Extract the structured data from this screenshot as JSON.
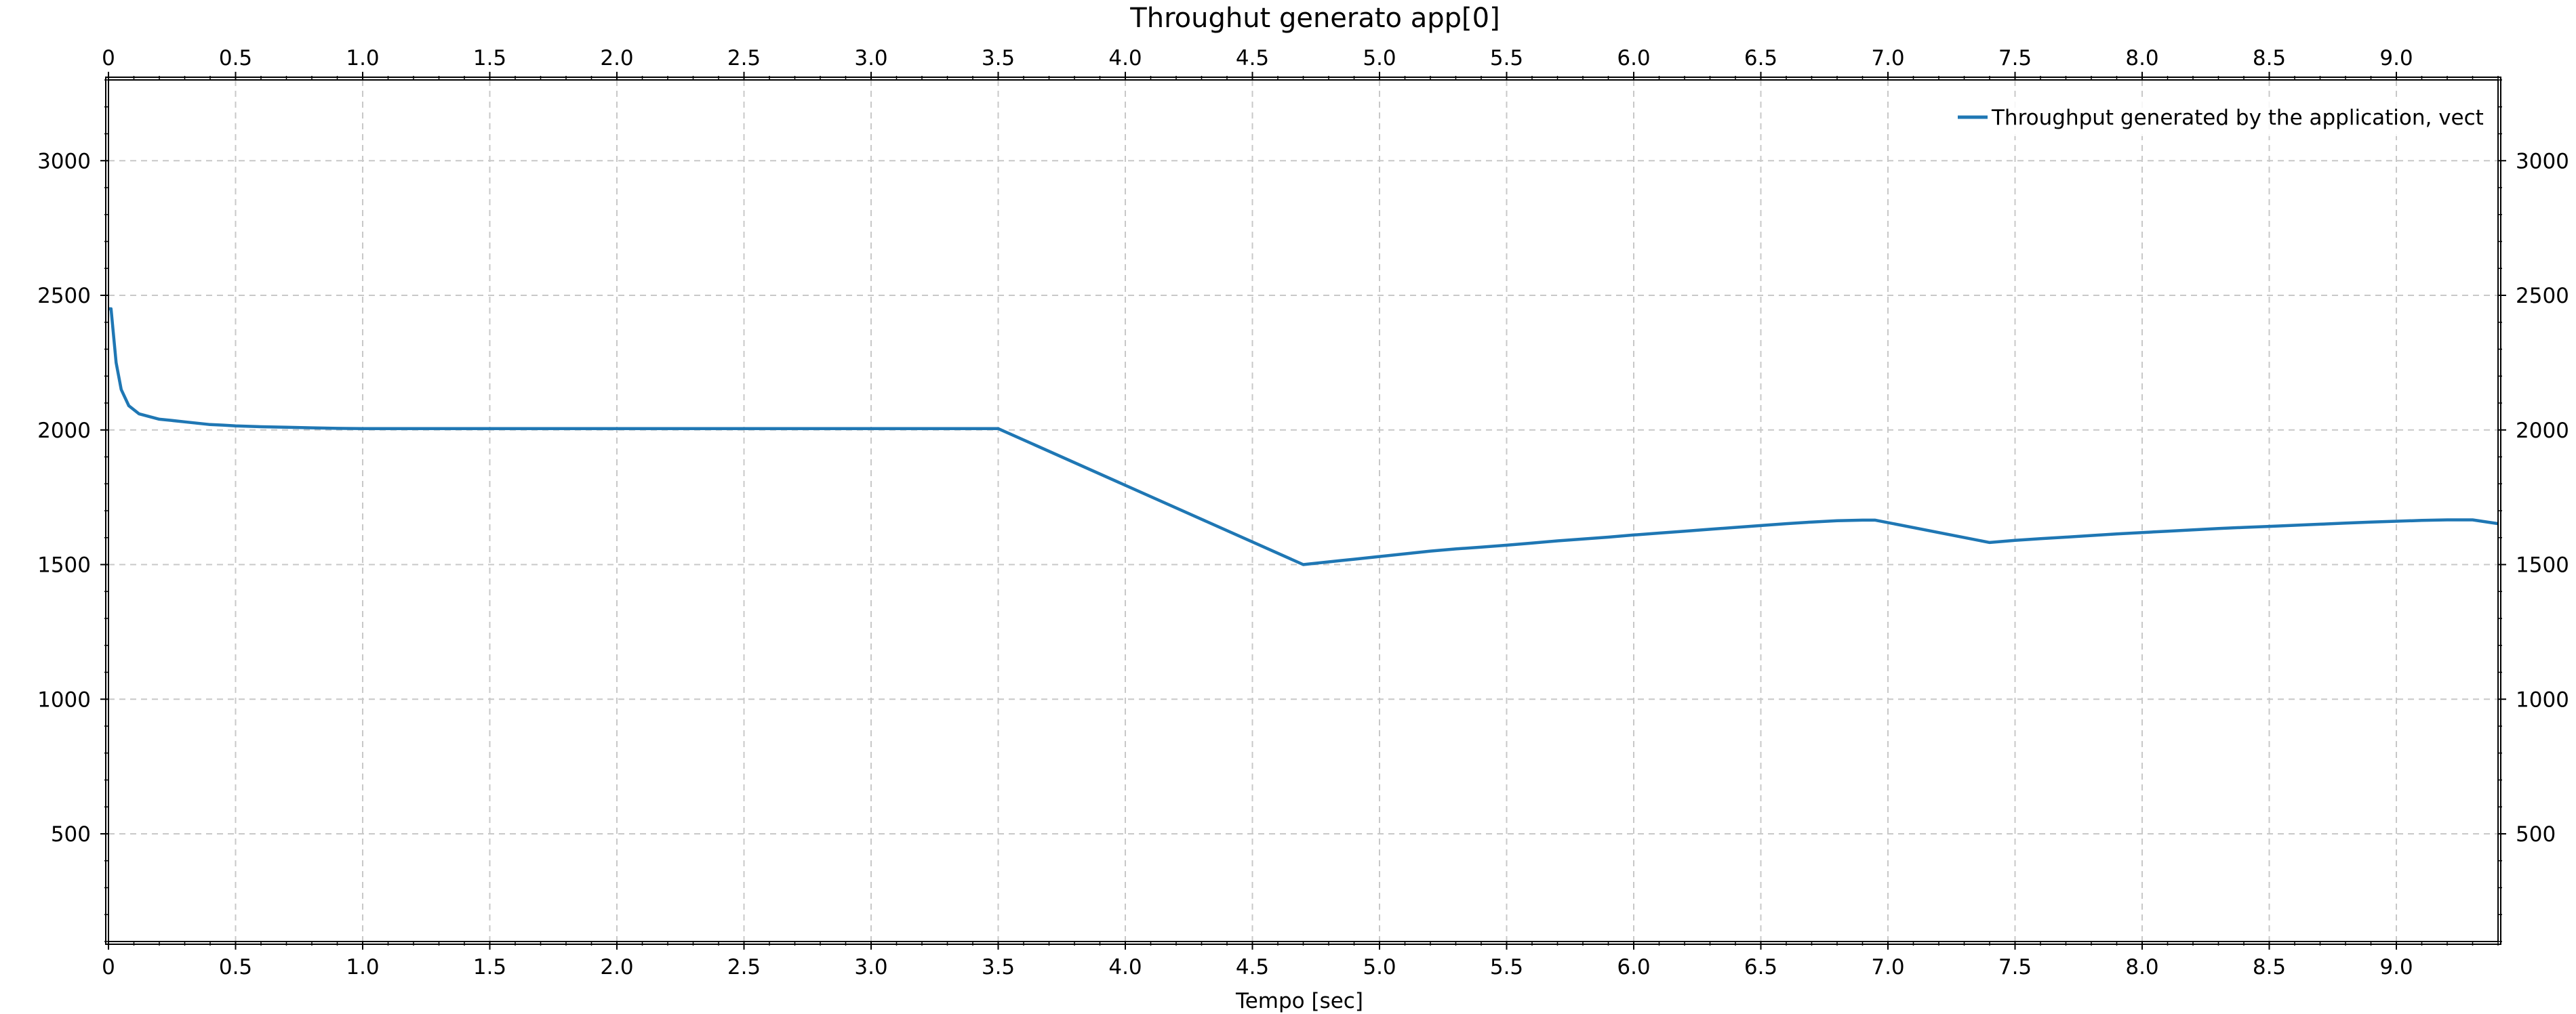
{
  "chart_data": {
    "type": "line",
    "title": "Throughut generato app[0]",
    "xlabel": "Tempo [sec]",
    "ylabel": "",
    "xlim": [
      0,
      9.4
    ],
    "ylim": [
      100,
      3300
    ],
    "x_ticks": [
      0,
      0.5,
      1.0,
      1.5,
      2.0,
      2.5,
      3.0,
      3.5,
      4.0,
      4.5,
      5.0,
      5.5,
      6.0,
      6.5,
      7.0,
      7.5,
      8.0,
      8.5,
      9.0
    ],
    "x_tick_labels": [
      "0",
      "0.5",
      "1.0",
      "1.5",
      "2.0",
      "2.5",
      "3.0",
      "3.5",
      "4.0",
      "4.5",
      "5.0",
      "5.5",
      "6.0",
      "6.5",
      "7.0",
      "7.5",
      "8.0",
      "8.5",
      "9.0"
    ],
    "y_ticks": [
      500,
      1000,
      1500,
      2000,
      2500,
      3000
    ],
    "y_tick_labels": [
      "500",
      "1000",
      "1500",
      "2000",
      "2500",
      "3000"
    ],
    "grid": true,
    "legend_position": "top-right",
    "series": [
      {
        "name": "Throughput generated by the application, vect",
        "color": "#1f77b4",
        "x": [
          0,
          0.01,
          0.03,
          0.05,
          0.08,
          0.12,
          0.16,
          0.2,
          0.25,
          0.3,
          0.35,
          0.4,
          0.45,
          0.5,
          0.6,
          0.7,
          0.8,
          0.9,
          1.0,
          1.5,
          2.0,
          2.5,
          3.0,
          3.4,
          3.5,
          4.7,
          4.75,
          4.8,
          4.85,
          4.9,
          4.95,
          5.0,
          5.1,
          5.2,
          5.3,
          5.4,
          5.5,
          5.6,
          5.7,
          5.8,
          5.9,
          6.0,
          6.1,
          6.2,
          6.3,
          6.4,
          6.5,
          6.6,
          6.7,
          6.8,
          6.9,
          6.95,
          7.4,
          7.5,
          7.6,
          7.7,
          7.8,
          7.9,
          8.0,
          8.1,
          8.2,
          8.3,
          8.4,
          8.5,
          8.6,
          8.7,
          8.8,
          8.9,
          9.0,
          9.1,
          9.2,
          9.3,
          9.4
        ],
        "y": [
          2450,
          2450,
          2250,
          2150,
          2090,
          2060,
          2050,
          2040,
          2035,
          2030,
          2025,
          2020,
          2018,
          2015,
          2012,
          2010,
          2008,
          2006,
          2005,
          2005,
          2005,
          2005,
          2005,
          2005,
          2005,
          1500,
          1505,
          1510,
          1515,
          1520,
          1525,
          1530,
          1540,
          1550,
          1558,
          1565,
          1572,
          1580,
          1588,
          1595,
          1602,
          1610,
          1617,
          1624,
          1631,
          1638,
          1645,
          1652,
          1658,
          1663,
          1665,
          1665,
          1582,
          1590,
          1596,
          1602,
          1608,
          1614,
          1619,
          1624,
          1629,
          1634,
          1638,
          1642,
          1646,
          1650,
          1654,
          1658,
          1661,
          1664,
          1666,
          1666,
          1652
        ]
      }
    ]
  }
}
